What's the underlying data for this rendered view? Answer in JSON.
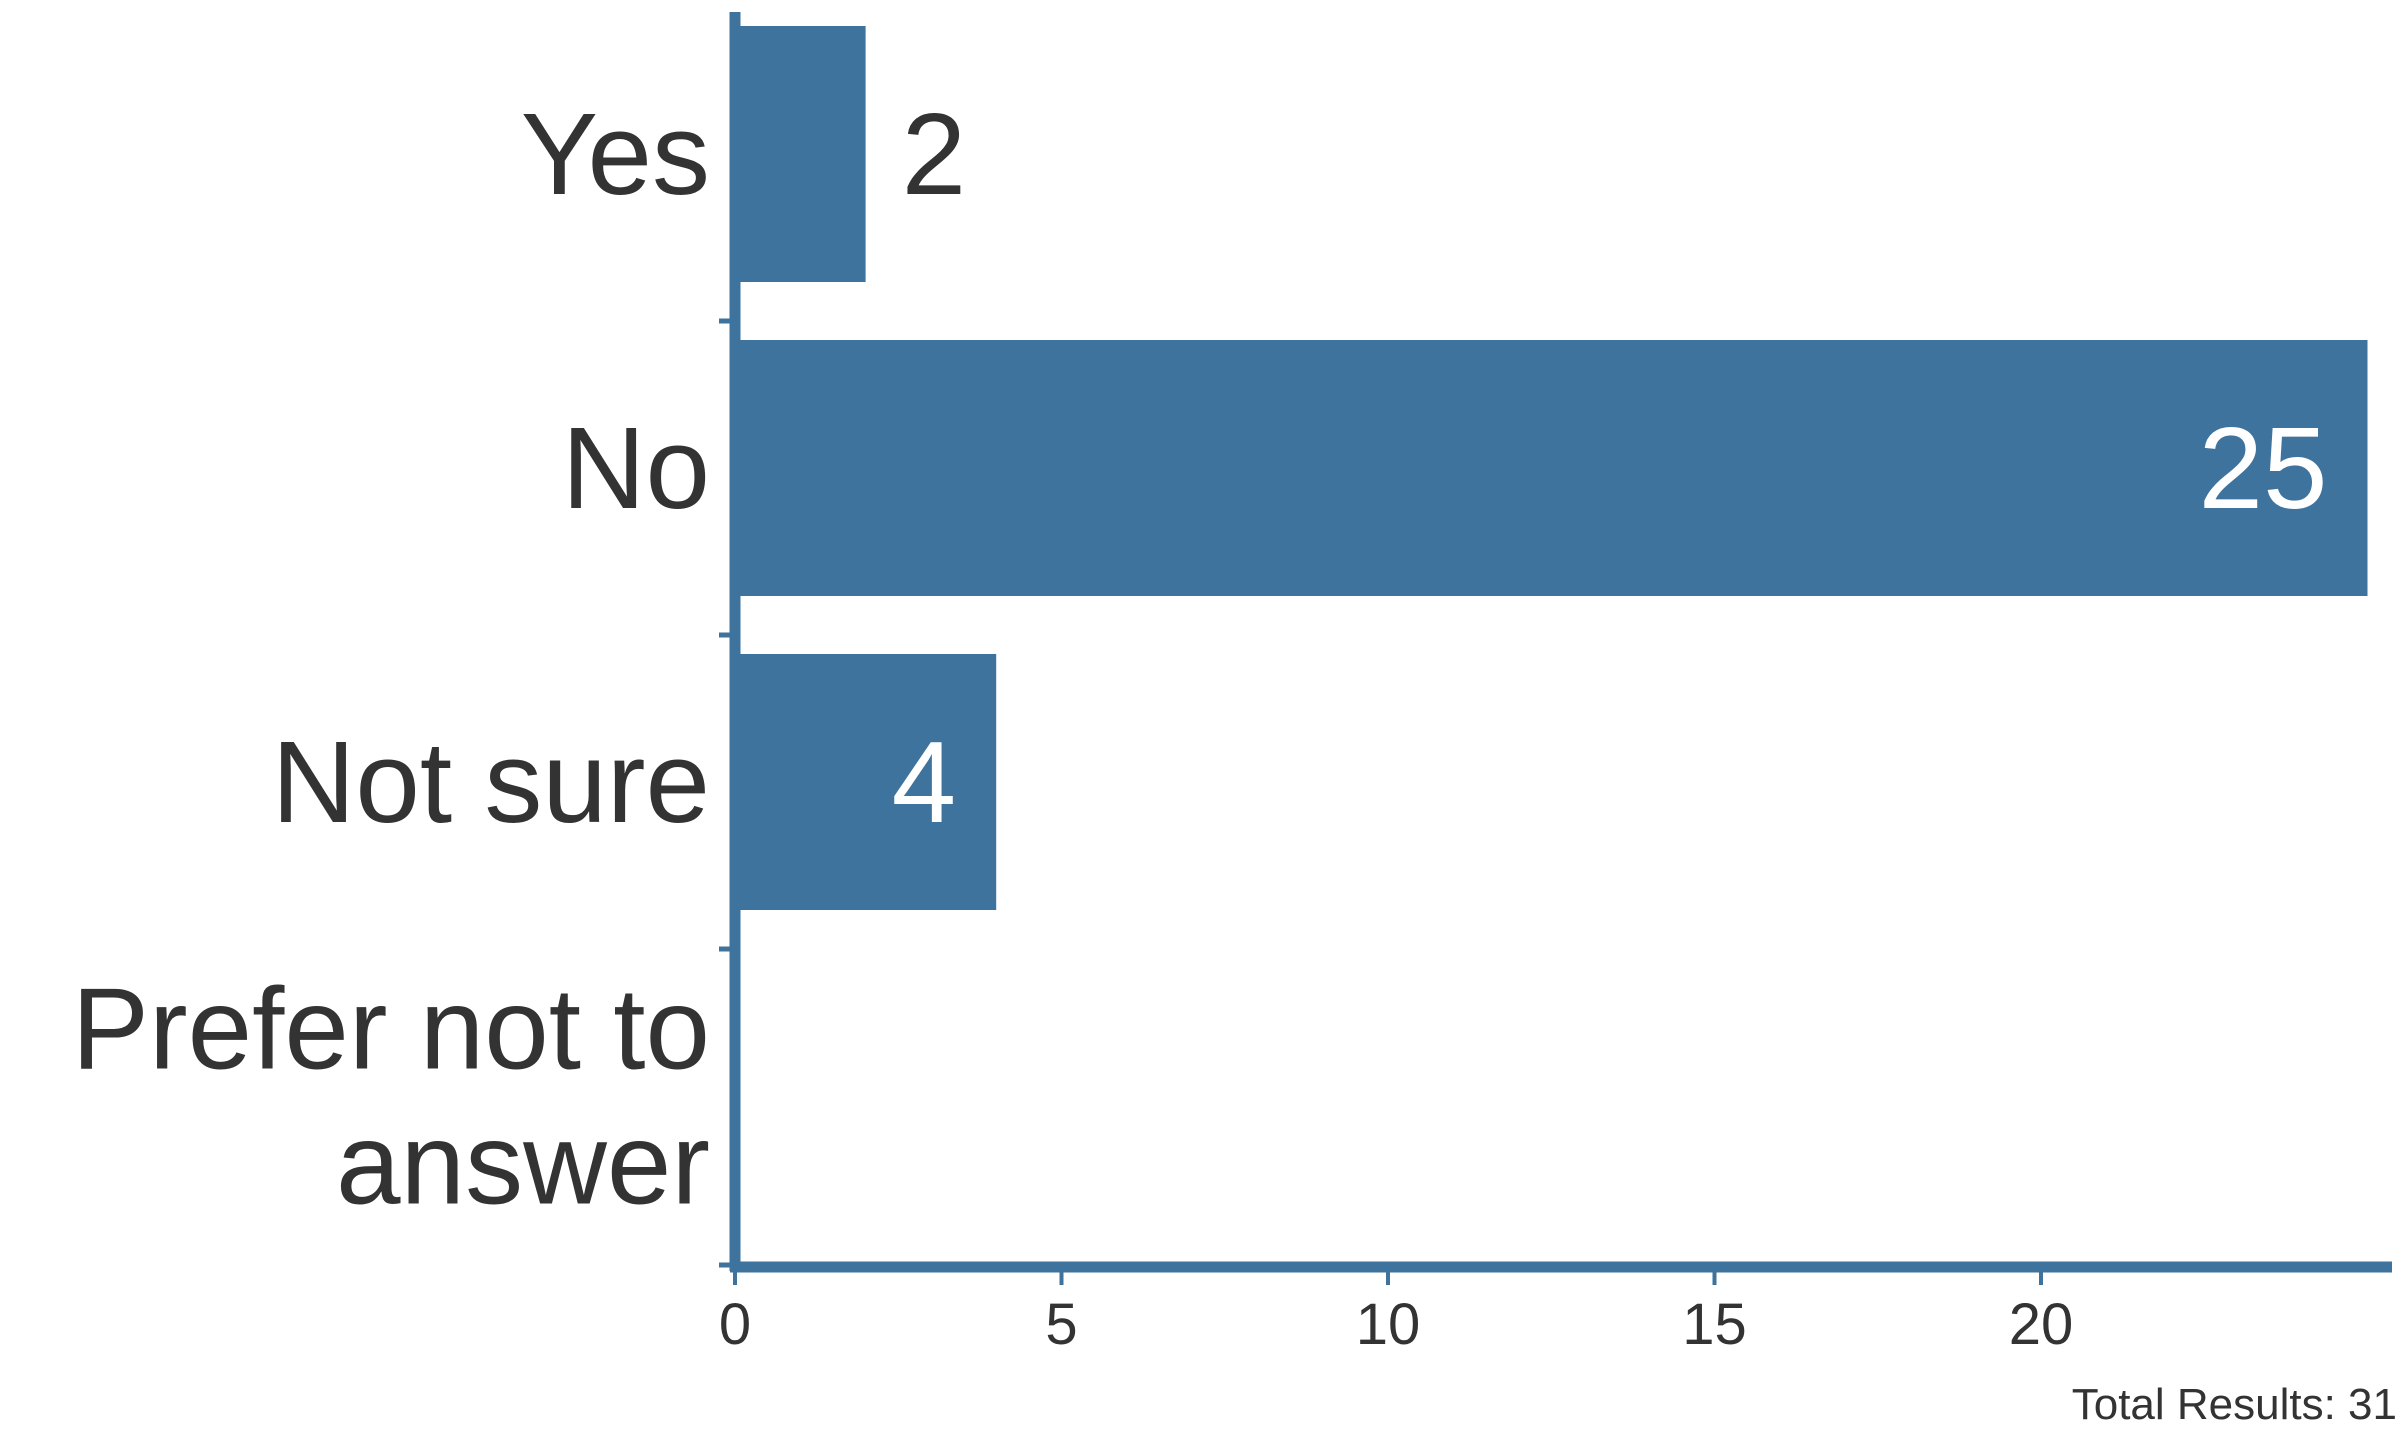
{
  "chart_data": {
    "type": "bar",
    "orientation": "horizontal",
    "categories": [
      "Yes",
      "No",
      "Not sure",
      "Prefer not to answer"
    ],
    "values": [
      2,
      25,
      4,
      0
    ],
    "xlim": [
      0,
      25
    ],
    "xticks": [
      0,
      5,
      10,
      15,
      20
    ],
    "grid": false,
    "legend": "none",
    "bar_color": "#3e739e",
    "axis_color": "#3e739e",
    "footer": {
      "total_label": "Total Results: 31"
    }
  }
}
